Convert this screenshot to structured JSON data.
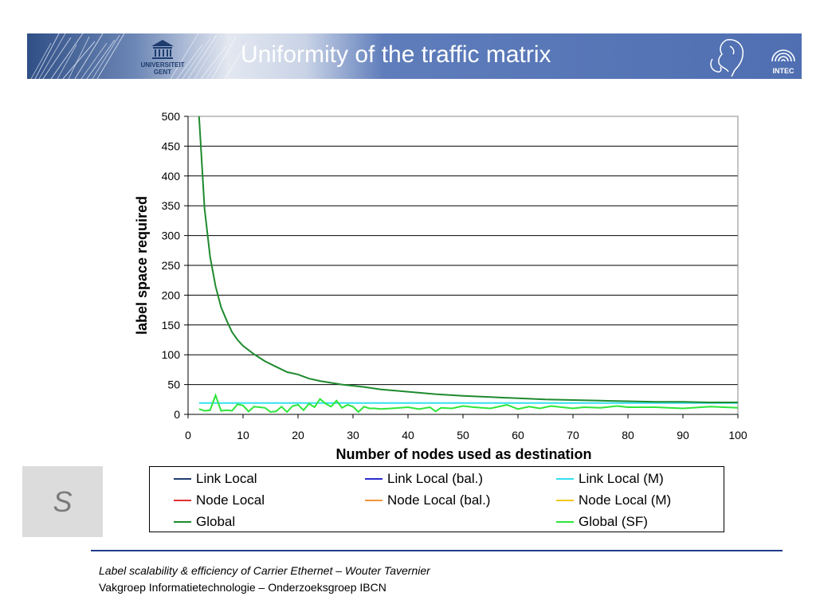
{
  "slide": {
    "title": "Uniformity of the traffic matrix",
    "sidebar_letter": "S",
    "footer_line1": "Label scalability & efficiency of Carrier Ethernet  – Wouter Tavernier",
    "footer_line2": "Vakgroep Informatietechnologie – Onderzoeksgroep IBCN"
  },
  "logos": {
    "left": "UNIVERSITEIT GENT",
    "right": "INTEC"
  },
  "colors": {
    "banner": "#4f6fb2",
    "footer_rule": "#1f3c8c",
    "grid": "#000000"
  },
  "chart_data": {
    "type": "line",
    "title": "",
    "xlabel": "Number of nodes used as destination",
    "ylabel": "label space required",
    "xlim": [
      0,
      100
    ],
    "ylim": [
      0,
      500
    ],
    "x_ticks": [
      0,
      10,
      20,
      30,
      40,
      50,
      60,
      70,
      80,
      90,
      100
    ],
    "y_ticks": [
      0,
      50,
      100,
      150,
      200,
      250,
      300,
      350,
      400,
      450,
      500
    ],
    "grid": "horizontal",
    "legend_position": "bottom",
    "series": [
      {
        "name": "Link Local",
        "color": "#1f3c6e",
        "x": [
          2,
          100
        ],
        "y": [
          19,
          19
        ],
        "visible": false
      },
      {
        "name": "Link Local (bal.)",
        "color": "#2b2bd0",
        "x": [
          2,
          100
        ],
        "y": [
          19,
          19
        ],
        "visible": false
      },
      {
        "name": "Link Local (M)",
        "color": "#33e0f0",
        "x": [
          2,
          5,
          10,
          15,
          20,
          25,
          30,
          35,
          40,
          45,
          50,
          55,
          60,
          65,
          70,
          75,
          80,
          85,
          90,
          95,
          100
        ],
        "y": [
          19,
          19,
          19,
          19,
          19,
          19,
          19,
          19,
          19,
          19,
          19,
          19,
          19,
          19,
          19,
          19,
          19,
          19,
          19,
          19,
          19
        ]
      },
      {
        "name": "Node Local",
        "color": "#e03030",
        "x": [
          2,
          100
        ],
        "y": [
          19,
          19
        ],
        "visible": false
      },
      {
        "name": "Node Local (bal.)",
        "color": "#f0943c",
        "x": [
          2,
          100
        ],
        "y": [
          19,
          19
        ],
        "visible": false
      },
      {
        "name": "Node Local (M)",
        "color": "#f2c81e",
        "x": [
          2,
          100
        ],
        "y": [
          19,
          19
        ],
        "visible": false
      },
      {
        "name": "Global",
        "color": "#1e8a2e",
        "x": [
          2,
          3,
          4,
          5,
          6,
          7,
          8,
          9,
          10,
          12,
          14,
          16,
          18,
          20,
          22,
          24,
          26,
          28,
          30,
          32,
          35,
          40,
          45,
          50,
          55,
          60,
          65,
          70,
          75,
          80,
          85,
          90,
          95,
          100
        ],
        "y": [
          500,
          345,
          265,
          215,
          180,
          158,
          138,
          125,
          115,
          101,
          89,
          80,
          71,
          67,
          60,
          56,
          53,
          50,
          48,
          46,
          42,
          38,
          34,
          31,
          29,
          27,
          25,
          24,
          23,
          22,
          21,
          21,
          20,
          20
        ]
      },
      {
        "name": "Global (SF)",
        "color": "#2ee63a",
        "x": [
          2,
          3,
          4,
          5,
          6,
          7,
          8,
          9,
          10,
          11,
          12,
          13,
          14,
          15,
          16,
          17,
          18,
          19,
          20,
          21,
          22,
          23,
          24,
          25,
          26,
          27,
          28,
          29,
          30,
          31,
          32,
          33,
          34,
          35,
          37,
          40,
          42,
          44,
          45,
          46,
          48,
          50,
          52,
          55,
          58,
          60,
          62,
          64,
          66,
          70,
          72,
          75,
          78,
          80,
          85,
          90,
          95,
          100
        ],
        "y": [
          9,
          6,
          7,
          32,
          6,
          7,
          6,
          17,
          15,
          5,
          13,
          12,
          11,
          4,
          5,
          13,
          4,
          14,
          16,
          7,
          18,
          12,
          26,
          18,
          13,
          23,
          11,
          16,
          13,
          4,
          13,
          10,
          10,
          9,
          10,
          12,
          9,
          12,
          5,
          11,
          10,
          14,
          12,
          10,
          16,
          9,
          13,
          10,
          14,
          10,
          12,
          11,
          14,
          12,
          12,
          10,
          13,
          11
        ]
      }
    ]
  }
}
